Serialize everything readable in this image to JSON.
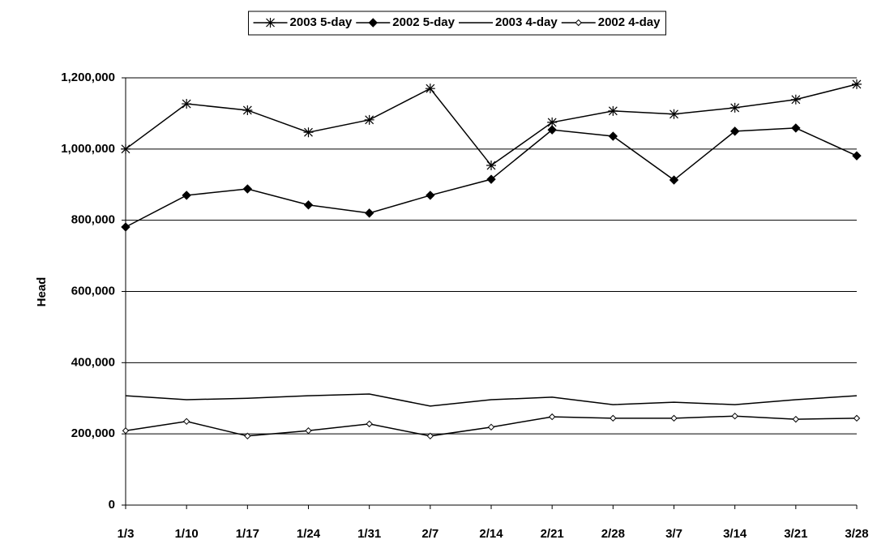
{
  "chart_data": {
    "type": "line",
    "y_label": "Head",
    "categories": [
      "1/3",
      "1/10",
      "1/17",
      "1/24",
      "1/31",
      "2/7",
      "2/14",
      "2/21",
      "2/28",
      "3/7",
      "3/14",
      "3/21",
      "3/28"
    ],
    "series": [
      {
        "name": "2003 5-day",
        "color": "#000000",
        "marker": "star",
        "values": [
          1000000,
          1127000,
          1109000,
          1047000,
          1082000,
          1170000,
          954000,
          1075000,
          1107000,
          1098000,
          1116000,
          1139000,
          1182000
        ]
      },
      {
        "name": "2002 5-day",
        "color": "#000000",
        "marker": "diamond",
        "values": [
          781000,
          870000,
          888000,
          843000,
          820000,
          870000,
          915000,
          1054000,
          1036000,
          913000,
          1050000,
          1059000,
          981000
        ]
      },
      {
        "name": "2003 4-day",
        "color": "#000000",
        "marker": "none",
        "values": [
          307000,
          296000,
          300000,
          307000,
          312000,
          278000,
          296000,
          303000,
          282000,
          289000,
          282000,
          296000,
          307000
        ]
      },
      {
        "name": "2002 4-day",
        "color": "#000000",
        "marker": "hollow-diamond",
        "values": [
          209000,
          235000,
          194000,
          209000,
          228000,
          194000,
          219000,
          248000,
          244000,
          244000,
          250000,
          241000,
          244000
        ]
      }
    ],
    "ylim": [
      0,
      1200000
    ],
    "yticks": [
      0,
      {
        "value": 200000,
        "label": "200,000"
      },
      {
        "value": 400000,
        "label": "400,000"
      },
      {
        "value": 600000,
        "label": "600,000"
      },
      {
        "value": 800000,
        "label": "800,000"
      },
      {
        "value": 1000000,
        "label": "1,000,000"
      },
      {
        "value": 1200000,
        "label": "1,200,000"
      }
    ],
    "grid": true,
    "legend": "top"
  }
}
